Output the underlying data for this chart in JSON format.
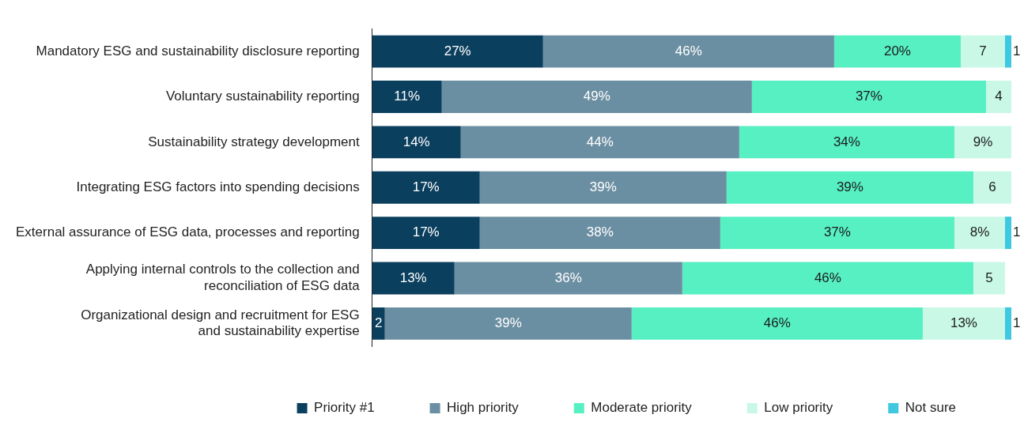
{
  "chart_data": {
    "type": "bar",
    "orientation": "horizontal",
    "stacked": true,
    "legend": "bottom",
    "tick_labels": "y",
    "categories": [
      "Mandatory ESG and sustainability disclosure reporting",
      "Voluntary sustainability reporting",
      "Sustainability strategy development",
      "Integrating ESG factors into spending decisions",
      "External assurance of ESG data, processes and reporting",
      "Applying internal controls to the collection and reconciliation of ESG data",
      "Organizational design and recruitment for ESG and sustainability expertise"
    ],
    "series": [
      {
        "name": "Priority #1",
        "color": "#0b3f5e",
        "values": [
          27,
          11,
          14,
          17,
          17,
          13,
          2
        ],
        "value_labels": [
          "27%",
          "11%",
          "14%",
          "17%",
          "17%",
          "13%",
          "2"
        ]
      },
      {
        "name": "High priority",
        "color": "#6b8fa2",
        "values": [
          46,
          49,
          44,
          39,
          38,
          36,
          39
        ],
        "value_labels": [
          "46%",
          "49%",
          "44%",
          "39%",
          "38%",
          "36%",
          "39%"
        ]
      },
      {
        "name": "Moderate priority",
        "color": "#57f0c2",
        "values": [
          20,
          37,
          34,
          39,
          37,
          46,
          46
        ],
        "value_labels": [
          "20%",
          "37%",
          "34%",
          "39%",
          "37%",
          "46%",
          "46%"
        ]
      },
      {
        "name": "Low priority",
        "color": "#c9f8e7",
        "values": [
          7,
          4,
          9,
          6,
          8,
          5,
          13
        ],
        "value_labels": [
          "7",
          "4",
          "9%",
          "6",
          "8%",
          "5",
          "13%"
        ]
      },
      {
        "name": "Not sure",
        "color": "#3fc8e0",
        "values": [
          1,
          null,
          null,
          null,
          1,
          null,
          1
        ],
        "value_labels": [
          "1",
          null,
          null,
          null,
          "1",
          null,
          "1"
        ]
      }
    ]
  }
}
